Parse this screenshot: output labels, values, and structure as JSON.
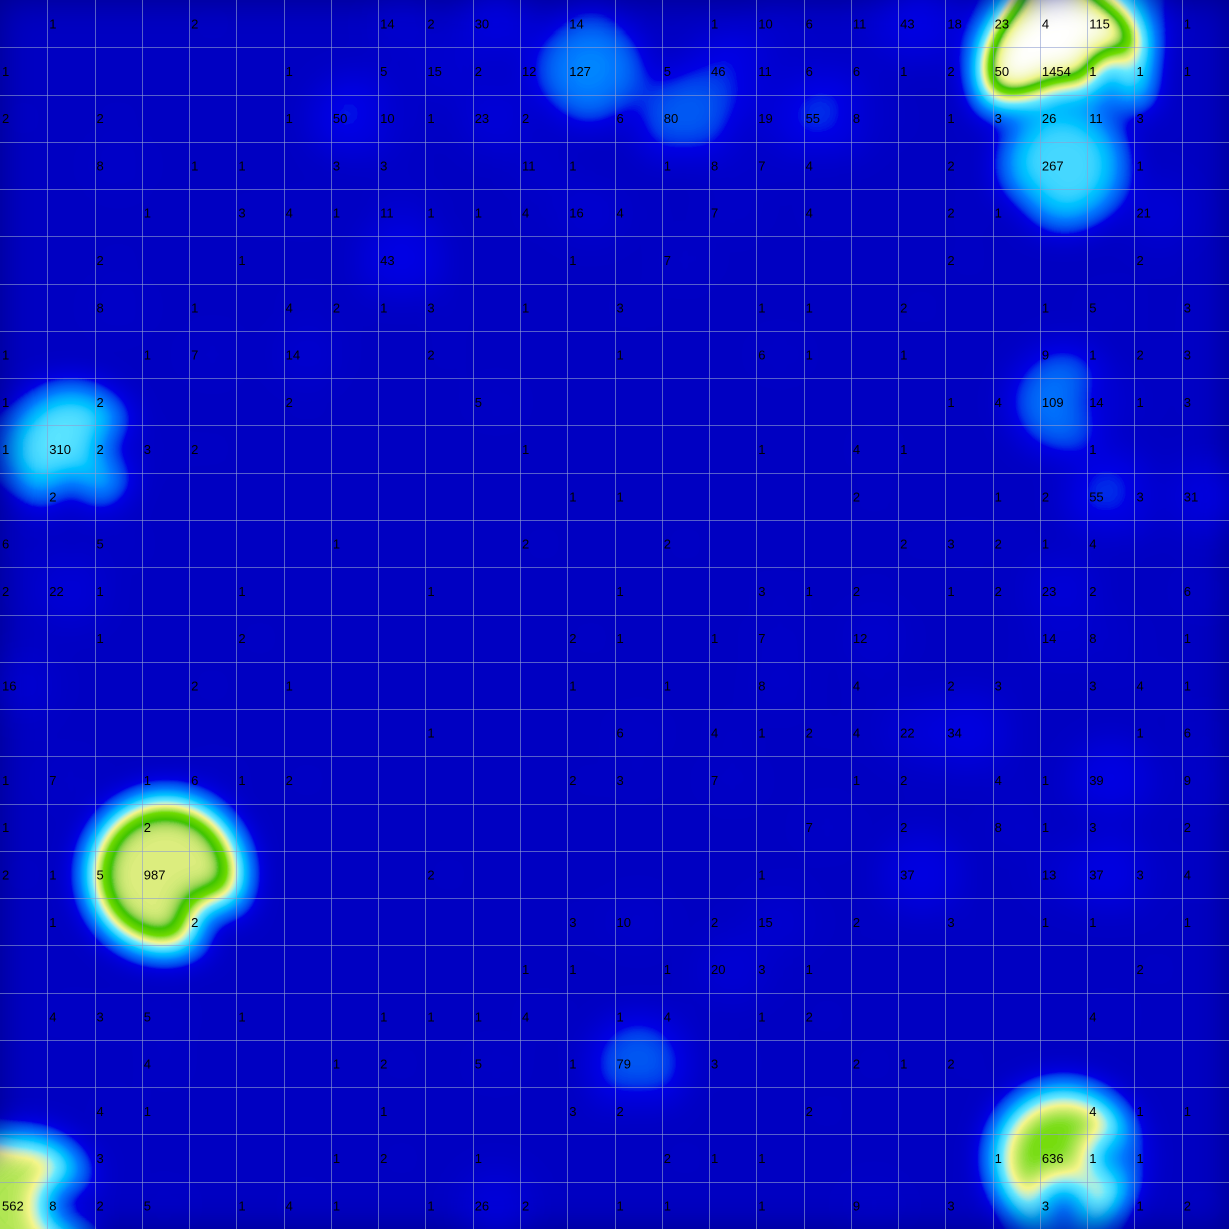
{
  "chart_data": {
    "type": "heatmap",
    "rows": 26,
    "cols": 26,
    "grid": true,
    "colormap": {
      "stops": [
        {
          "t": 0.0,
          "color": "#00008b"
        },
        {
          "t": 0.1,
          "color": "#0000c8"
        },
        {
          "t": 0.22,
          "color": "#0030ff"
        },
        {
          "t": 0.34,
          "color": "#0090ff"
        },
        {
          "t": 0.44,
          "color": "#20d0ff"
        },
        {
          "t": 0.54,
          "color": "#e8ea40"
        },
        {
          "t": 0.64,
          "color": "#2cb800"
        },
        {
          "t": 0.74,
          "color": "#0a8a00"
        },
        {
          "t": 0.84,
          "color": "#d8e840"
        },
        {
          "t": 1.0,
          "color": "#ffffff"
        }
      ]
    },
    "cells": [
      [
        0,
        1,
        1
      ],
      [
        0,
        4,
        2
      ],
      [
        0,
        8,
        14
      ],
      [
        0,
        9,
        2
      ],
      [
        0,
        10,
        30
      ],
      [
        0,
        12,
        14
      ],
      [
        0,
        15,
        1
      ],
      [
        0,
        16,
        10
      ],
      [
        0,
        17,
        6
      ],
      [
        0,
        18,
        11
      ],
      [
        0,
        19,
        43
      ],
      [
        0,
        20,
        18
      ],
      [
        0,
        21,
        23
      ],
      [
        0,
        22,
        4
      ],
      [
        0,
        23,
        115
      ],
      [
        0,
        25,
        1
      ],
      [
        1,
        0,
        1
      ],
      [
        1,
        6,
        1
      ],
      [
        1,
        8,
        5
      ],
      [
        1,
        9,
        15
      ],
      [
        1,
        10,
        2
      ],
      [
        1,
        11,
        12
      ],
      [
        1,
        12,
        127
      ],
      [
        1,
        14,
        5
      ],
      [
        1,
        15,
        46
      ],
      [
        1,
        16,
        11
      ],
      [
        1,
        17,
        6
      ],
      [
        1,
        18,
        6
      ],
      [
        1,
        19,
        1
      ],
      [
        1,
        20,
        2
      ],
      [
        1,
        21,
        50
      ],
      [
        1,
        22,
        1454
      ],
      [
        1,
        23,
        1
      ],
      [
        1,
        24,
        1
      ],
      [
        1,
        25,
        1
      ],
      [
        2,
        0,
        2
      ],
      [
        2,
        2,
        2
      ],
      [
        2,
        6,
        1
      ],
      [
        2,
        7,
        50
      ],
      [
        2,
        8,
        10
      ],
      [
        2,
        9,
        1
      ],
      [
        2,
        10,
        23
      ],
      [
        2,
        11,
        2
      ],
      [
        2,
        13,
        6
      ],
      [
        2,
        14,
        80
      ],
      [
        2,
        16,
        19
      ],
      [
        2,
        17,
        55
      ],
      [
        2,
        18,
        8
      ],
      [
        2,
        20,
        1
      ],
      [
        2,
        21,
        3
      ],
      [
        2,
        22,
        26
      ],
      [
        2,
        23,
        11
      ],
      [
        2,
        24,
        3
      ],
      [
        3,
        2,
        8
      ],
      [
        3,
        4,
        1
      ],
      [
        3,
        5,
        1
      ],
      [
        3,
        7,
        3
      ],
      [
        3,
        8,
        3
      ],
      [
        3,
        11,
        11
      ],
      [
        3,
        12,
        1
      ],
      [
        3,
        14,
        1
      ],
      [
        3,
        15,
        8
      ],
      [
        3,
        16,
        7
      ],
      [
        3,
        17,
        4
      ],
      [
        3,
        20,
        2
      ],
      [
        3,
        22,
        267
      ],
      [
        3,
        24,
        1
      ],
      [
        4,
        3,
        1
      ],
      [
        4,
        5,
        3
      ],
      [
        4,
        6,
        4
      ],
      [
        4,
        7,
        1
      ],
      [
        4,
        8,
        11
      ],
      [
        4,
        9,
        1
      ],
      [
        4,
        10,
        1
      ],
      [
        4,
        11,
        4
      ],
      [
        4,
        12,
        16
      ],
      [
        4,
        13,
        4
      ],
      [
        4,
        15,
        7
      ],
      [
        4,
        17,
        4
      ],
      [
        4,
        20,
        2
      ],
      [
        4,
        21,
        1
      ],
      [
        4,
        24,
        21
      ],
      [
        5,
        2,
        2
      ],
      [
        5,
        5,
        1
      ],
      [
        5,
        8,
        43
      ],
      [
        5,
        12,
        1
      ],
      [
        5,
        14,
        7
      ],
      [
        5,
        20,
        2
      ],
      [
        5,
        24,
        2
      ],
      [
        6,
        2,
        8
      ],
      [
        6,
        4,
        1
      ],
      [
        6,
        6,
        4
      ],
      [
        6,
        7,
        2
      ],
      [
        6,
        8,
        1
      ],
      [
        6,
        9,
        3
      ],
      [
        6,
        11,
        1
      ],
      [
        6,
        13,
        3
      ],
      [
        6,
        16,
        1
      ],
      [
        6,
        17,
        1
      ],
      [
        6,
        19,
        2
      ],
      [
        6,
        22,
        1
      ],
      [
        6,
        23,
        5
      ],
      [
        6,
        25,
        3
      ],
      [
        7,
        0,
        1
      ],
      [
        7,
        3,
        1
      ],
      [
        7,
        4,
        7
      ],
      [
        7,
        6,
        14
      ],
      [
        7,
        9,
        2
      ],
      [
        7,
        13,
        1
      ],
      [
        7,
        16,
        6
      ],
      [
        7,
        17,
        1
      ],
      [
        7,
        19,
        1
      ],
      [
        7,
        22,
        9
      ],
      [
        7,
        23,
        1
      ],
      [
        7,
        24,
        2
      ],
      [
        7,
        25,
        3
      ],
      [
        8,
        0,
        1
      ],
      [
        8,
        2,
        2
      ],
      [
        8,
        6,
        2
      ],
      [
        8,
        10,
        5
      ],
      [
        8,
        20,
        1
      ],
      [
        8,
        21,
        4
      ],
      [
        8,
        22,
        109
      ],
      [
        8,
        23,
        14
      ],
      [
        8,
        24,
        1
      ],
      [
        8,
        25,
        3
      ],
      [
        9,
        0,
        1
      ],
      [
        9,
        1,
        310
      ],
      [
        9,
        2,
        2
      ],
      [
        9,
        3,
        3
      ],
      [
        9,
        4,
        2
      ],
      [
        9,
        11,
        1
      ],
      [
        9,
        16,
        1
      ],
      [
        9,
        18,
        4
      ],
      [
        9,
        19,
        1
      ],
      [
        9,
        23,
        1
      ],
      [
        10,
        1,
        2
      ],
      [
        10,
        12,
        1
      ],
      [
        10,
        13,
        1
      ],
      [
        10,
        18,
        2
      ],
      [
        10,
        21,
        1
      ],
      [
        10,
        22,
        2
      ],
      [
        10,
        23,
        55
      ],
      [
        10,
        24,
        3
      ],
      [
        10,
        25,
        31
      ],
      [
        11,
        0,
        6
      ],
      [
        11,
        2,
        5
      ],
      [
        11,
        7,
        1
      ],
      [
        11,
        11,
        2
      ],
      [
        11,
        14,
        2
      ],
      [
        11,
        19,
        2
      ],
      [
        11,
        20,
        3
      ],
      [
        11,
        21,
        2
      ],
      [
        11,
        22,
        1
      ],
      [
        11,
        23,
        4
      ],
      [
        12,
        0,
        2
      ],
      [
        12,
        1,
        22
      ],
      [
        12,
        2,
        1
      ],
      [
        12,
        5,
        1
      ],
      [
        12,
        9,
        1
      ],
      [
        12,
        13,
        1
      ],
      [
        12,
        16,
        3
      ],
      [
        12,
        17,
        1
      ],
      [
        12,
        18,
        2
      ],
      [
        12,
        20,
        1
      ],
      [
        12,
        21,
        2
      ],
      [
        12,
        22,
        23
      ],
      [
        12,
        23,
        2
      ],
      [
        12,
        25,
        6
      ],
      [
        13,
        2,
        1
      ],
      [
        13,
        5,
        2
      ],
      [
        13,
        12,
        2
      ],
      [
        13,
        13,
        1
      ],
      [
        13,
        15,
        1
      ],
      [
        13,
        16,
        7
      ],
      [
        13,
        18,
        12
      ],
      [
        13,
        22,
        14
      ],
      [
        13,
        23,
        8
      ],
      [
        13,
        25,
        1
      ],
      [
        14,
        0,
        16
      ],
      [
        14,
        4,
        2
      ],
      [
        14,
        6,
        1
      ],
      [
        14,
        12,
        1
      ],
      [
        14,
        14,
        1
      ],
      [
        14,
        16,
        8
      ],
      [
        14,
        18,
        4
      ],
      [
        14,
        20,
        2
      ],
      [
        14,
        21,
        3
      ],
      [
        14,
        23,
        3
      ],
      [
        14,
        24,
        4
      ],
      [
        14,
        25,
        1
      ],
      [
        15,
        9,
        1
      ],
      [
        15,
        13,
        6
      ],
      [
        15,
        15,
        4
      ],
      [
        15,
        16,
        1
      ],
      [
        15,
        17,
        2
      ],
      [
        15,
        18,
        4
      ],
      [
        15,
        19,
        22
      ],
      [
        15,
        20,
        34
      ],
      [
        15,
        24,
        1
      ],
      [
        15,
        25,
        6
      ],
      [
        16,
        0,
        1
      ],
      [
        16,
        1,
        7
      ],
      [
        16,
        3,
        1
      ],
      [
        16,
        4,
        6
      ],
      [
        16,
        5,
        1
      ],
      [
        16,
        6,
        2
      ],
      [
        16,
        12,
        2
      ],
      [
        16,
        13,
        3
      ],
      [
        16,
        15,
        7
      ],
      [
        16,
        18,
        1
      ],
      [
        16,
        19,
        2
      ],
      [
        16,
        21,
        4
      ],
      [
        16,
        22,
        1
      ],
      [
        16,
        23,
        39
      ],
      [
        16,
        25,
        9
      ],
      [
        17,
        0,
        1
      ],
      [
        17,
        3,
        2
      ],
      [
        17,
        17,
        7
      ],
      [
        17,
        19,
        2
      ],
      [
        17,
        21,
        8
      ],
      [
        17,
        22,
        1
      ],
      [
        17,
        23,
        3
      ],
      [
        17,
        25,
        2
      ],
      [
        18,
        0,
        2
      ],
      [
        18,
        1,
        1
      ],
      [
        18,
        2,
        5
      ],
      [
        18,
        3,
        987
      ],
      [
        18,
        9,
        2
      ],
      [
        18,
        16,
        1
      ],
      [
        18,
        19,
        37
      ],
      [
        18,
        22,
        13
      ],
      [
        18,
        23,
        37
      ],
      [
        18,
        24,
        3
      ],
      [
        18,
        25,
        4
      ],
      [
        19,
        1,
        1
      ],
      [
        19,
        4,
        2
      ],
      [
        19,
        12,
        3
      ],
      [
        19,
        13,
        10
      ],
      [
        19,
        15,
        2
      ],
      [
        19,
        16,
        15
      ],
      [
        19,
        18,
        2
      ],
      [
        19,
        20,
        3
      ],
      [
        19,
        22,
        1
      ],
      [
        19,
        23,
        1
      ],
      [
        19,
        25,
        1
      ],
      [
        20,
        11,
        1
      ],
      [
        20,
        12,
        1
      ],
      [
        20,
        14,
        1
      ],
      [
        20,
        15,
        20
      ],
      [
        20,
        16,
        3
      ],
      [
        20,
        17,
        1
      ],
      [
        20,
        24,
        2
      ],
      [
        21,
        1,
        4
      ],
      [
        21,
        2,
        3
      ],
      [
        21,
        3,
        5
      ],
      [
        21,
        5,
        1
      ],
      [
        21,
        8,
        1
      ],
      [
        21,
        9,
        1
      ],
      [
        21,
        10,
        1
      ],
      [
        21,
        11,
        4
      ],
      [
        21,
        13,
        1
      ],
      [
        21,
        14,
        4
      ],
      [
        21,
        16,
        1
      ],
      [
        21,
        17,
        2
      ],
      [
        21,
        23,
        4
      ],
      [
        22,
        3,
        4
      ],
      [
        22,
        7,
        1
      ],
      [
        22,
        8,
        2
      ],
      [
        22,
        10,
        5
      ],
      [
        22,
        12,
        1
      ],
      [
        22,
        13,
        79
      ],
      [
        22,
        15,
        3
      ],
      [
        22,
        18,
        2
      ],
      [
        22,
        19,
        1
      ],
      [
        22,
        20,
        2
      ],
      [
        23,
        2,
        4
      ],
      [
        23,
        3,
        1
      ],
      [
        23,
        8,
        1
      ],
      [
        23,
        12,
        3
      ],
      [
        23,
        13,
        2
      ],
      [
        23,
        17,
        2
      ],
      [
        23,
        23,
        4
      ],
      [
        23,
        24,
        1
      ],
      [
        23,
        25,
        1
      ],
      [
        24,
        2,
        3
      ],
      [
        24,
        7,
        1
      ],
      [
        24,
        8,
        2
      ],
      [
        24,
        10,
        1
      ],
      [
        24,
        14,
        2
      ],
      [
        24,
        15,
        1
      ],
      [
        24,
        16,
        1
      ],
      [
        24,
        21,
        1
      ],
      [
        24,
        22,
        636
      ],
      [
        24,
        23,
        1
      ],
      [
        24,
        24,
        1
      ],
      [
        25,
        0,
        562
      ],
      [
        25,
        1,
        8
      ],
      [
        25,
        2,
        2
      ],
      [
        25,
        3,
        5
      ],
      [
        25,
        5,
        1
      ],
      [
        25,
        6,
        4
      ],
      [
        25,
        7,
        1
      ],
      [
        25,
        9,
        1
      ],
      [
        25,
        10,
        26
      ],
      [
        25,
        11,
        2
      ],
      [
        25,
        13,
        1
      ],
      [
        25,
        14,
        1
      ],
      [
        25,
        16,
        1
      ],
      [
        25,
        18,
        9
      ],
      [
        25,
        20,
        3
      ],
      [
        25,
        22,
        3
      ],
      [
        25,
        24,
        1
      ],
      [
        25,
        25,
        2
      ]
    ]
  }
}
